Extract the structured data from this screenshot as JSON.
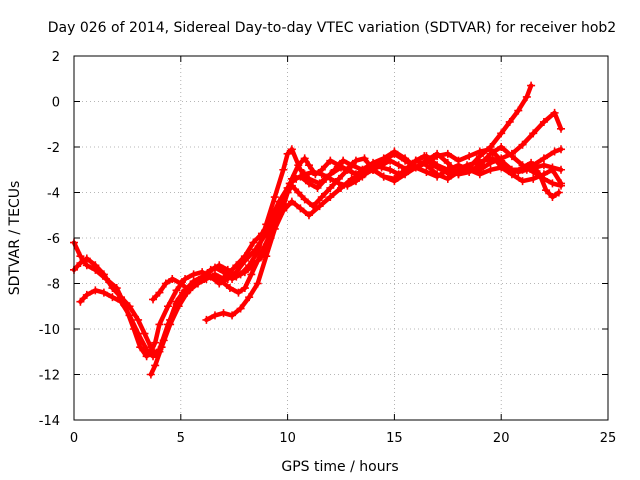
{
  "chart_data": {
    "type": "scatter",
    "title": "Day 026 of 2014, Sidereal Day-to-day VTEC variation (SDTVAR) for receiver hob2",
    "xlabel": "GPS time / hours",
    "ylabel": "SDTVAR / TECUs",
    "xlim": [
      0,
      25
    ],
    "ylim": [
      -14,
      2
    ],
    "xticks": [
      0,
      5,
      10,
      15,
      20,
      25
    ],
    "yticks": [
      -14,
      -12,
      -10,
      -8,
      -6,
      -4,
      -2,
      0,
      2
    ],
    "grid": true,
    "legend": "none",
    "marker": "plus",
    "color": "#ff0000",
    "series": [
      {
        "x": [
          0.0,
          0.3,
          0.6,
          1.0,
          1.5,
          2.0,
          2.4,
          2.8,
          3.1,
          3.4,
          3.6,
          3.8,
          4.0,
          4.4,
          4.8,
          5.2,
          5.6,
          6.0,
          6.4,
          6.8,
          7.2,
          7.6,
          8.0,
          8.5,
          9.0,
          9.4,
          9.8,
          10.1,
          10.4,
          10.8,
          11.2,
          11.6,
          12.0,
          12.4,
          12.8,
          13.2,
          13.6,
          14.0,
          14.4,
          14.8,
          15.2,
          15.6,
          16.0,
          16.5,
          17.0,
          17.5,
          18.0,
          18.5,
          19.0,
          19.5,
          20.0,
          20.4,
          20.8,
          21.2,
          21.4
        ],
        "y": [
          -6.2,
          -6.8,
          -7.2,
          -7.4,
          -7.8,
          -8.2,
          -9.0,
          -10.0,
          -10.8,
          -11.2,
          -11.0,
          -10.6,
          -9.8,
          -9.0,
          -8.3,
          -7.8,
          -7.6,
          -7.5,
          -7.7,
          -8.0,
          -7.8,
          -7.5,
          -7.0,
          -6.5,
          -5.8,
          -5.0,
          -4.3,
          -3.6,
          -3.4,
          -3.2,
          -3.1,
          -3.2,
          -3.4,
          -3.6,
          -3.7,
          -3.5,
          -3.2,
          -3.0,
          -2.8,
          -2.6,
          -2.8,
          -3.0,
          -2.6,
          -2.4,
          -2.8,
          -3.0,
          -3.2,
          -2.9,
          -2.4,
          -2.0,
          -1.4,
          -0.9,
          -0.4,
          0.2,
          0.7
        ]
      },
      {
        "x": [
          0.0,
          0.3,
          0.6,
          1.0,
          1.4,
          1.8,
          2.2,
          2.6,
          3.0,
          3.3,
          3.6,
          3.8,
          4.0,
          4.2,
          4.5,
          4.8,
          5.1,
          5.4,
          5.8,
          6.2,
          6.6,
          7.0,
          7.3,
          7.6,
          8.0,
          8.4,
          8.8,
          9.2,
          9.6,
          10.0,
          10.3,
          10.6,
          11.0,
          11.4,
          11.8,
          12.2,
          12.6,
          13.0,
          13.5,
          14.0,
          14.5,
          15.0,
          15.5,
          16.0,
          16.5,
          17.0,
          17.5,
          18.0,
          18.5,
          19.0,
          19.5,
          20.0,
          20.5,
          21.0,
          21.5,
          22.0,
          22.5,
          22.8
        ],
        "y": [
          -7.4,
          -7.1,
          -6.9,
          -7.2,
          -7.6,
          -8.2,
          -8.6,
          -9.0,
          -9.6,
          -10.2,
          -10.8,
          -11.1,
          -11.0,
          -10.5,
          -9.6,
          -8.8,
          -8.4,
          -8.2,
          -8.0,
          -7.8,
          -7.6,
          -7.8,
          -7.5,
          -7.2,
          -6.8,
          -6.2,
          -5.8,
          -5.2,
          -4.4,
          -3.8,
          -3.4,
          -3.3,
          -3.6,
          -3.8,
          -3.4,
          -3.0,
          -2.6,
          -2.8,
          -3.0,
          -2.7,
          -2.5,
          -2.2,
          -2.5,
          -2.9,
          -2.7,
          -2.4,
          -2.3,
          -2.6,
          -2.4,
          -2.2,
          -2.1,
          -2.6,
          -3.0,
          -3.0,
          -2.8,
          -2.5,
          -2.2,
          -2.1
        ]
      },
      {
        "x": [
          3.6,
          3.8,
          4.1,
          4.5,
          4.9,
          5.3,
          5.7,
          6.1,
          6.5,
          6.9,
          7.3,
          7.7,
          8.0,
          8.3,
          8.6,
          8.9,
          9.2,
          9.5,
          9.8,
          10.0,
          10.2,
          10.5,
          10.8,
          11.0,
          11.3,
          11.6,
          12.0,
          12.4,
          12.8,
          13.2,
          13.6,
          14.0,
          14.4,
          14.8,
          15.2,
          15.6,
          16.0,
          16.4,
          16.8,
          17.2,
          17.6,
          18.0,
          18.4,
          18.8,
          19.2,
          19.6,
          20.0,
          20.4,
          20.8,
          21.2,
          21.6,
          22.0,
          22.4,
          22.8
        ],
        "y": [
          -12.0,
          -11.6,
          -10.8,
          -9.8,
          -9.0,
          -8.4,
          -8.0,
          -7.8,
          -7.7,
          -7.9,
          -8.2,
          -8.4,
          -8.2,
          -7.6,
          -7.0,
          -6.4,
          -5.8,
          -5.2,
          -4.5,
          -4.0,
          -3.4,
          -2.8,
          -2.5,
          -2.8,
          -3.2,
          -3.0,
          -2.6,
          -2.8,
          -3.0,
          -3.2,
          -3.0,
          -2.8,
          -2.9,
          -3.0,
          -3.2,
          -3.0,
          -2.6,
          -2.4,
          -2.8,
          -3.0,
          -3.2,
          -3.0,
          -2.8,
          -2.7,
          -2.6,
          -2.5,
          -2.8,
          -3.0,
          -3.1,
          -3.0,
          -2.9,
          -2.8,
          -2.9,
          -3.0
        ]
      },
      {
        "x": [
          0.3,
          0.6,
          1.0,
          1.4,
          1.8,
          2.2,
          2.6,
          3.0,
          3.4,
          3.7,
          4.0,
          4.4,
          4.8,
          5.2,
          5.6,
          6.0,
          6.4,
          6.8,
          7.2,
          7.6,
          8.0,
          8.4,
          8.8,
          9.2,
          9.5,
          9.8,
          10.0,
          10.2,
          10.5,
          10.8,
          11.2,
          11.6,
          12.0,
          12.4,
          12.8,
          13.2,
          13.6,
          14.0,
          14.5,
          15.0,
          15.5,
          16.0,
          16.5,
          17.0,
          17.5,
          18.0,
          18.5,
          19.0,
          19.5,
          20.0,
          20.5,
          21.0,
          21.5,
          22.0,
          22.5,
          22.8
        ],
        "y": [
          -8.8,
          -8.5,
          -8.3,
          -8.4,
          -8.6,
          -8.8,
          -9.4,
          -10.2,
          -10.9,
          -11.2,
          -10.9,
          -9.8,
          -8.9,
          -8.3,
          -7.9,
          -7.7,
          -7.4,
          -7.2,
          -7.4,
          -7.7,
          -7.5,
          -7.2,
          -6.8,
          -6.0,
          -5.2,
          -4.6,
          -4.0,
          -3.7,
          -4.0,
          -4.3,
          -4.6,
          -4.2,
          -3.8,
          -3.4,
          -3.0,
          -2.6,
          -2.5,
          -3.0,
          -3.3,
          -3.4,
          -3.0,
          -2.6,
          -2.8,
          -3.2,
          -3.4,
          -3.1,
          -2.9,
          -3.0,
          -2.7,
          -2.5,
          -2.3,
          -1.9,
          -1.4,
          -0.9,
          -0.5,
          -1.2
        ]
      },
      {
        "x": [
          3.7,
          4.0,
          4.3,
          4.6,
          5.0,
          5.4,
          5.8,
          6.2,
          6.6,
          7.0,
          7.4,
          7.8,
          8.2,
          8.6,
          9.0,
          9.4,
          9.8,
          10.0,
          10.2,
          10.6,
          11.0,
          11.5,
          12.0,
          12.5,
          13.0,
          13.5,
          14.0,
          14.5,
          15.0,
          15.5,
          16.0,
          16.5,
          17.0,
          17.5,
          18.0,
          18.5,
          19.0,
          19.5,
          20.0,
          20.5,
          21.0,
          21.5,
          22.0,
          22.4,
          22.8
        ],
        "y": [
          -8.7,
          -8.4,
          -8.0,
          -7.8,
          -8.0,
          -8.3,
          -8.0,
          -7.6,
          -7.3,
          -7.5,
          -7.8,
          -7.6,
          -7.2,
          -6.6,
          -5.4,
          -4.2,
          -3.0,
          -2.3,
          -2.1,
          -3.0,
          -3.4,
          -3.6,
          -3.2,
          -2.9,
          -3.1,
          -3.3,
          -2.9,
          -2.6,
          -2.3,
          -2.6,
          -2.9,
          -2.6,
          -2.3,
          -2.7,
          -3.2,
          -3.1,
          -2.8,
          -2.3,
          -2.0,
          -2.4,
          -2.8,
          -3.1,
          -3.4,
          -3.6,
          -3.7
        ]
      },
      {
        "x": [
          6.2,
          6.6,
          7.0,
          7.4,
          7.8,
          8.2,
          8.6,
          9.0,
          9.4,
          9.8,
          10.2,
          10.6,
          11.0,
          11.5,
          12.0,
          12.5,
          13.0,
          13.5,
          14.0,
          14.5,
          15.0,
          15.5,
          16.0,
          16.5,
          17.0,
          17.5,
          18.0,
          18.5,
          19.0,
          19.5,
          20.0,
          20.5,
          21.0,
          21.5,
          22.0,
          22.4,
          22.8
        ],
        "y": [
          -9.6,
          -9.4,
          -9.3,
          -9.4,
          -9.1,
          -8.6,
          -8.0,
          -6.8,
          -5.6,
          -4.8,
          -4.4,
          -4.7,
          -5.0,
          -4.6,
          -4.2,
          -3.8,
          -3.4,
          -3.2,
          -3.0,
          -3.3,
          -3.5,
          -3.2,
          -2.9,
          -3.1,
          -3.3,
          -3.0,
          -2.8,
          -3.0,
          -3.2,
          -3.0,
          -2.9,
          -3.2,
          -3.5,
          -3.4,
          -3.2,
          -3.0,
          -3.6
        ]
      },
      {
        "x": [
          19.8,
          20.2,
          20.6,
          21.0,
          21.4,
          21.8,
          22.1,
          22.4,
          22.7
        ],
        "y": [
          -2.6,
          -2.9,
          -3.1,
          -2.9,
          -2.7,
          -3.2,
          -3.9,
          -4.2,
          -4.0
        ]
      }
    ]
  }
}
